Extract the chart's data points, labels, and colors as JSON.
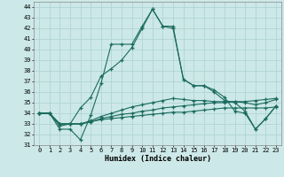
{
  "xlabel": "Humidex (Indice chaleur)",
  "xlim": [
    -0.5,
    23.5
  ],
  "ylim": [
    31,
    44.5
  ],
  "yticks": [
    31,
    32,
    33,
    34,
    35,
    36,
    37,
    38,
    39,
    40,
    41,
    42,
    43,
    44
  ],
  "xticks": [
    0,
    1,
    2,
    3,
    4,
    5,
    6,
    7,
    8,
    9,
    10,
    11,
    12,
    13,
    14,
    15,
    16,
    17,
    18,
    19,
    20,
    21,
    22,
    23
  ],
  "background_color": "#cde8e8",
  "grid_color": "#b0d4d4",
  "line_color": "#1a6b5e",
  "line1": [
    34,
    34,
    32.5,
    32.5,
    31.5,
    33.8,
    36.8,
    40.5,
    40.5,
    40.5,
    42.2,
    43.8,
    42.2,
    42.2,
    37.2,
    36.6,
    36.6,
    36.2,
    35.5,
    34.2,
    34,
    32.5,
    33.5,
    34.7
  ],
  "line2": [
    34,
    34,
    32.8,
    33,
    34.5,
    35.5,
    37.5,
    38.2,
    39,
    40.2,
    42,
    43.8,
    42.2,
    42,
    37.2,
    36.6,
    36.6,
    36.0,
    35.2,
    35,
    34.2,
    32.5,
    33.5,
    34.7
  ],
  "line3": [
    34,
    34,
    33.0,
    33.0,
    33.0,
    33.2,
    33.4,
    33.5,
    33.6,
    33.7,
    33.8,
    33.9,
    34.0,
    34.1,
    34.1,
    34.2,
    34.3,
    34.4,
    34.5,
    34.5,
    34.5,
    34.5,
    34.5,
    34.6
  ],
  "line4": [
    34,
    34,
    33.0,
    33.0,
    33.0,
    33.2,
    33.5,
    33.7,
    33.9,
    34.0,
    34.2,
    34.3,
    34.5,
    34.6,
    34.7,
    34.8,
    34.9,
    35.0,
    35.0,
    35.1,
    35.1,
    35.2,
    35.3,
    35.4
  ],
  "line5": [
    34,
    34,
    33.0,
    33.0,
    33.0,
    33.3,
    33.7,
    34.0,
    34.3,
    34.6,
    34.8,
    35.0,
    35.2,
    35.4,
    35.3,
    35.2,
    35.2,
    35.1,
    35.1,
    35.1,
    35.0,
    34.8,
    35.0,
    35.3
  ]
}
